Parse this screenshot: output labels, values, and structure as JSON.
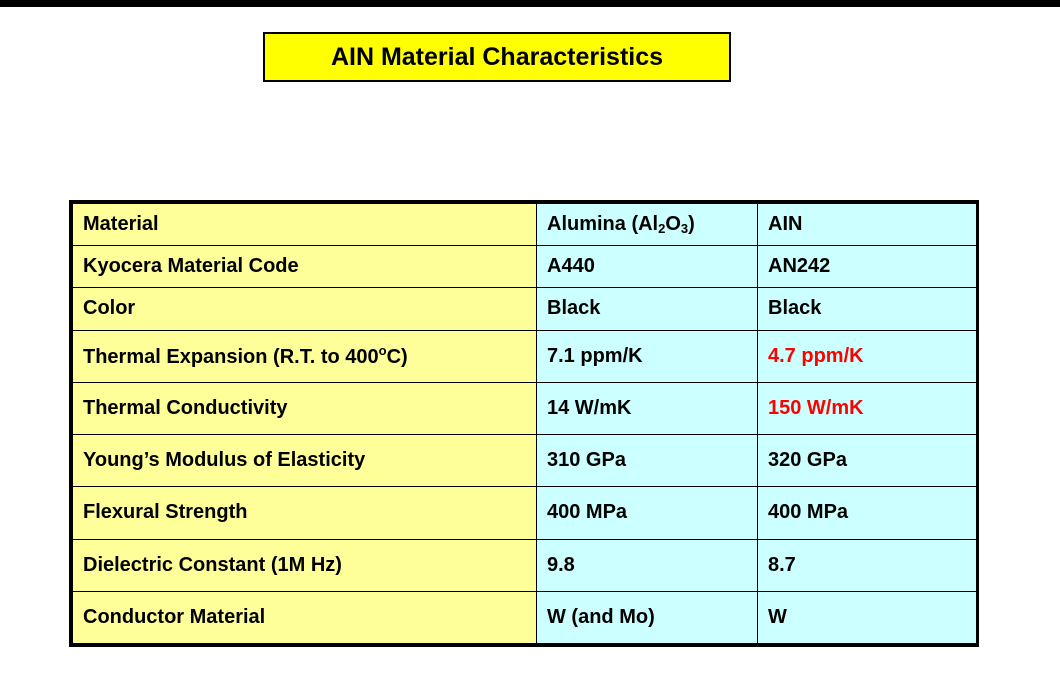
{
  "title": "AIN Material Characteristics",
  "table": {
    "header": {
      "label": "Material",
      "alumina_prefix": "Alumina (Al",
      "alumina_sub1": "2",
      "alumina_mid": "O",
      "alumina_sub2": "3",
      "alumina_suffix": ")",
      "ain": "AIN"
    },
    "rows": [
      {
        "label": "Kyocera Material Code",
        "alumina": "A440",
        "ain": "AN242"
      },
      {
        "label": "Color",
        "alumina": "Black",
        "ain": "Black"
      },
      {
        "label_prefix": "Thermal Expansion (R.T. to 400",
        "label_sup": "o",
        "label_suffix": "C)",
        "alumina": "7.1 ppm/K",
        "ain": "4.7 ppm/K"
      },
      {
        "label": "Thermal Conductivity",
        "alumina": "14 W/mK",
        "ain": "150 W/mK"
      },
      {
        "label": "Young’s Modulus of Elasticity",
        "alumina": "310 GPa",
        "ain": "320 GPa"
      },
      {
        "label": "Flexural Strength",
        "alumina": "400 MPa",
        "ain": "400 MPa"
      },
      {
        "label": "Dielectric Constant  (1M Hz)",
        "alumina": "9.8",
        "ain": "8.7"
      },
      {
        "label": "Conductor Material",
        "alumina": "W (and Mo)",
        "ain": "W"
      }
    ]
  },
  "colors": {
    "title_bg": "#ffff00",
    "label_bg": "#ffff99",
    "value_bg": "#ccffff",
    "highlight_text": "#ff0000"
  }
}
